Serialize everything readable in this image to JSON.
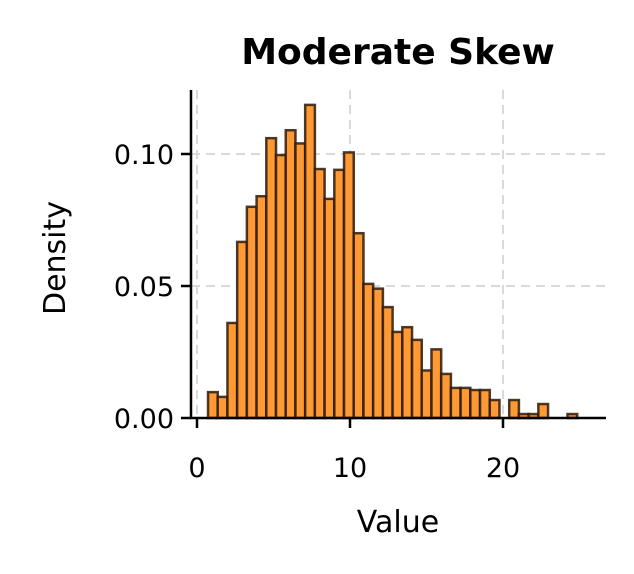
{
  "chart_data": {
    "type": "bar",
    "subtype": "histogram",
    "title": "Moderate Skew",
    "xlabel": "Value",
    "ylabel": "Density",
    "xlim": [
      -0.4,
      26.7
    ],
    "ylim": [
      0,
      0.124
    ],
    "xticks": [
      0,
      10,
      20
    ],
    "xtick_labels": [
      "0",
      "10",
      "20"
    ],
    "yticks": [
      0.0,
      0.05,
      0.1
    ],
    "ytick_labels": [
      "0.00",
      "0.05",
      "0.10"
    ],
    "grid": true,
    "grid_style": "dashed",
    "bar_color": "#ff9933",
    "bar_edge_color": "#2b1a0e",
    "bin_start": 0.72,
    "bin_width": 0.635,
    "values": [
      0.0098,
      0.008,
      0.036,
      0.0667,
      0.08,
      0.084,
      0.106,
      0.0996,
      0.109,
      0.104,
      0.1186,
      0.0943,
      0.083,
      0.094,
      0.1006,
      0.07,
      0.0508,
      0.049,
      0.042,
      0.0326,
      0.0344,
      0.0296,
      0.018,
      0.026,
      0.0167,
      0.0114,
      0.0114,
      0.0106,
      0.0106,
      0.0068,
      0.0,
      0.0068,
      0.0015,
      0.0015,
      0.0053,
      0.0,
      0.0,
      0.0015
    ]
  }
}
